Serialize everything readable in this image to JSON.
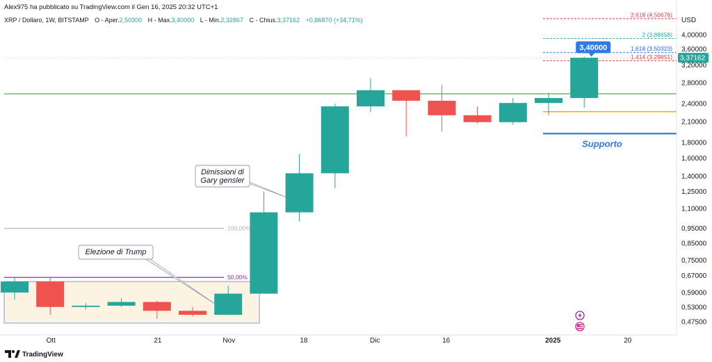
{
  "header": {
    "published_by": "Alex975 ha pubblicato su TradingView.com il Gen 16, 2025 20:32 UTC+1",
    "symbol_line": "XRP / Dollaro, 1W, BITSTAMP",
    "ohlc": {
      "o_label": "O - Aper.",
      "o_value": "2,50300",
      "h_label": "H - Max.",
      "h_value": "3,40000",
      "l_label": "L - Min.",
      "l_value": "2,32867",
      "c_label": "C - Chius.",
      "c_value": "3,37162",
      "change": "+0,86870 (+34,71%)"
    }
  },
  "footer": {
    "brand": "TradingView"
  },
  "colors": {
    "bull": "#26a69a",
    "bear": "#ef5350",
    "blue": "#2962ff",
    "label_blue": "#2f7ae5",
    "fib_red": "#f23645",
    "fib_green": "#26a69a",
    "fib_blue": "#2962ff",
    "purple": "#9c27b0",
    "support_line": "#f9a825",
    "horiz_green": "#4caf50",
    "support_text": "#2f7ae5",
    "range_box_fill": "#fdf3e3",
    "range_box_border": "#7b9be0",
    "event_purple": "#9c27b0",
    "event_red": "#e91e63"
  },
  "chart_data": {
    "type": "candlestick",
    "price_scale": "log",
    "currency_label": "USD",
    "y_ticks": [
      "4,00000",
      "3,60000",
      "3,20000",
      "2,80000",
      "2,40000",
      "2,10000",
      "1,80000",
      "1,60000",
      "1,40000",
      "1,25000",
      "1,10000",
      "0,95000",
      "0,85000",
      "0,75000",
      "0,67000",
      "0,59000",
      "0,53000",
      "0,47500"
    ],
    "y_tick_values": [
      4.0,
      3.6,
      3.2,
      2.8,
      2.4,
      2.1,
      1.8,
      1.6,
      1.4,
      1.25,
      1.1,
      0.95,
      0.85,
      0.75,
      0.67,
      0.59,
      0.53,
      0.475
    ],
    "ylim": [
      0.42,
      5.0
    ],
    "x_ticks": [
      {
        "label": "Ott",
        "index": 1.1
      },
      {
        "label": "21",
        "index": 4.1
      },
      {
        "label": "Nov",
        "index": 6.1
      },
      {
        "label": "18",
        "index": 8.2
      },
      {
        "label": "Dic",
        "index": 10.2
      },
      {
        "label": "16",
        "index": 12.2
      },
      {
        "label": "2025",
        "index": 15.2
      },
      {
        "label": "20",
        "index": 17.3
      }
    ],
    "candles": [
      {
        "o": 0.59,
        "h": 0.66,
        "l": 0.56,
        "c": 0.64
      },
      {
        "o": 0.64,
        "h": 0.66,
        "l": 0.5,
        "c": 0.53
      },
      {
        "o": 0.53,
        "h": 0.545,
        "l": 0.52,
        "c": 0.535
      },
      {
        "o": 0.535,
        "h": 0.565,
        "l": 0.53,
        "c": 0.55
      },
      {
        "o": 0.55,
        "h": 0.555,
        "l": 0.485,
        "c": 0.515
      },
      {
        "o": 0.515,
        "h": 0.53,
        "l": 0.495,
        "c": 0.5
      },
      {
        "o": 0.5,
        "h": 0.62,
        "l": 0.5,
        "c": 0.585
      },
      {
        "o": 0.585,
        "h": 1.25,
        "l": 0.585,
        "c": 1.07
      },
      {
        "o": 1.07,
        "h": 1.65,
        "l": 1.0,
        "c": 1.43
      },
      {
        "o": 1.43,
        "h": 2.4,
        "l": 1.28,
        "c": 2.35
      },
      {
        "o": 2.35,
        "h": 2.9,
        "l": 2.25,
        "c": 2.65
      },
      {
        "o": 2.65,
        "h": 2.65,
        "l": 1.88,
        "c": 2.45
      },
      {
        "o": 2.45,
        "h": 2.75,
        "l": 1.95,
        "c": 2.2
      },
      {
        "o": 2.2,
        "h": 2.35,
        "l": 2.07,
        "c": 2.09
      },
      {
        "o": 2.09,
        "h": 2.5,
        "l": 2.05,
        "c": 2.41
      },
      {
        "o": 2.41,
        "h": 2.6,
        "l": 2.2,
        "c": 2.5
      },
      {
        "o": 2.5,
        "h": 3.4,
        "l": 2.32867,
        "c": 3.37162
      }
    ],
    "current_price_label": "3,37162",
    "high_label": "3,40000",
    "fib_levels": [
      {
        "label": "2,618 (4,50676)",
        "price": 4.50676,
        "color": "#f23645"
      },
      {
        "label": "2 (3,88658)",
        "price": 3.88658,
        "color": "#26a69a"
      },
      {
        "label": "1,618 (3,50323)",
        "price": 3.50323,
        "color": "#2962ff"
      },
      {
        "label": "1,414 (3,29851)",
        "price": 3.29851,
        "color": "#f23645"
      }
    ],
    "left_fib_levels": [
      {
        "label": "100,00%",
        "price": 0.95,
        "color": "#b2b5be"
      },
      {
        "label": "50,00%",
        "price": 0.66,
        "color": "#9c27b0"
      }
    ],
    "support_label": "Supporto",
    "annotations": [
      {
        "text_lines": [
          "Dimissioni di",
          "Gary gensler"
        ],
        "target_index": 8
      },
      {
        "text_lines": [
          "Elezione di Trump"
        ],
        "target_index": 6
      }
    ]
  }
}
